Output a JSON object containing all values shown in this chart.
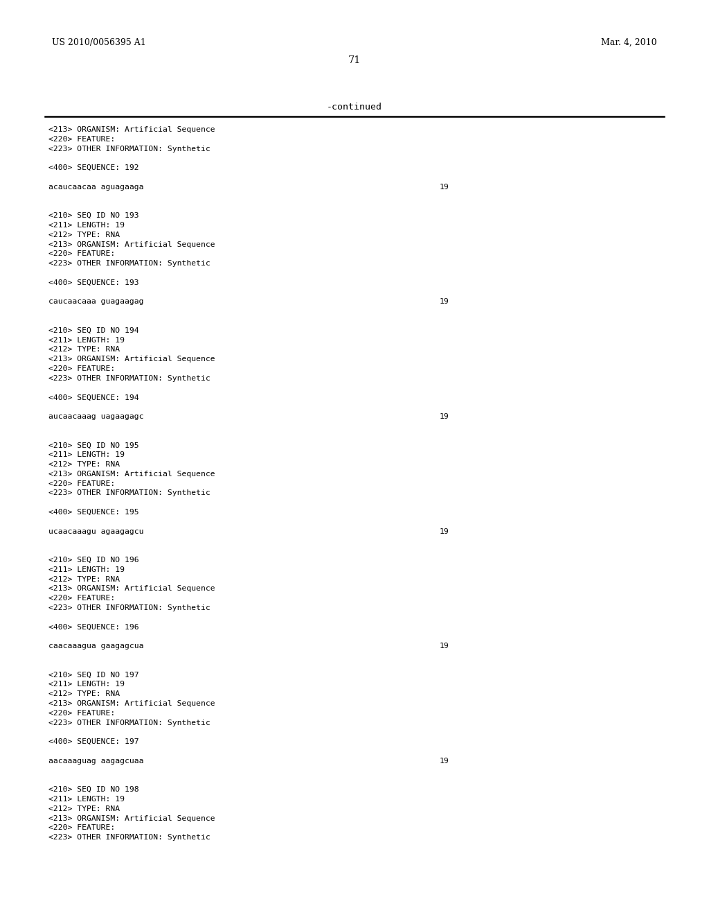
{
  "background_color": "#ffffff",
  "header_left": "US 2010/0056395 A1",
  "header_right": "Mar. 4, 2010",
  "page_number": "71",
  "continued_label": "-continued",
  "header_font_size": 9.0,
  "page_num_font_size": 10.5,
  "continued_font_size": 9.5,
  "mono_font_size": 8.2,
  "content": [
    "<213> ORGANISM: Artificial Sequence",
    "<220> FEATURE:",
    "<223> OTHER INFORMATION: Synthetic",
    "",
    "<400> SEQUENCE: 192",
    "",
    "SEQ_LINE:acaucaacaa aguagaaga:19",
    "",
    "",
    "<210> SEQ ID NO 193",
    "<211> LENGTH: 19",
    "<212> TYPE: RNA",
    "<213> ORGANISM: Artificial Sequence",
    "<220> FEATURE:",
    "<223> OTHER INFORMATION: Synthetic",
    "",
    "<400> SEQUENCE: 193",
    "",
    "SEQ_LINE:caucaacaaa guagaagag:19",
    "",
    "",
    "<210> SEQ ID NO 194",
    "<211> LENGTH: 19",
    "<212> TYPE: RNA",
    "<213> ORGANISM: Artificial Sequence",
    "<220> FEATURE:",
    "<223> OTHER INFORMATION: Synthetic",
    "",
    "<400> SEQUENCE: 194",
    "",
    "SEQ_LINE:aucaacaaag uagaagagc:19",
    "",
    "",
    "<210> SEQ ID NO 195",
    "<211> LENGTH: 19",
    "<212> TYPE: RNA",
    "<213> ORGANISM: Artificial Sequence",
    "<220> FEATURE:",
    "<223> OTHER INFORMATION: Synthetic",
    "",
    "<400> SEQUENCE: 195",
    "",
    "SEQ_LINE:ucaacaaagu agaagagcu:19",
    "",
    "",
    "<210> SEQ ID NO 196",
    "<211> LENGTH: 19",
    "<212> TYPE: RNA",
    "<213> ORGANISM: Artificial Sequence",
    "<220> FEATURE:",
    "<223> OTHER INFORMATION: Synthetic",
    "",
    "<400> SEQUENCE: 196",
    "",
    "SEQ_LINE:caacaaagua gaagagcua:19",
    "",
    "",
    "<210> SEQ ID NO 197",
    "<211> LENGTH: 19",
    "<212> TYPE: RNA",
    "<213> ORGANISM: Artificial Sequence",
    "<220> FEATURE:",
    "<223> OTHER INFORMATION: Synthetic",
    "",
    "<400> SEQUENCE: 197",
    "",
    "SEQ_LINE:aacaaaguag aagagcuaa:19",
    "",
    "",
    "<210> SEQ ID NO 198",
    "<211> LENGTH: 19",
    "<212> TYPE: RNA",
    "<213> ORGANISM: Artificial Sequence",
    "<220> FEATURE:",
    "<223> OTHER INFORMATION: Synthetic"
  ]
}
